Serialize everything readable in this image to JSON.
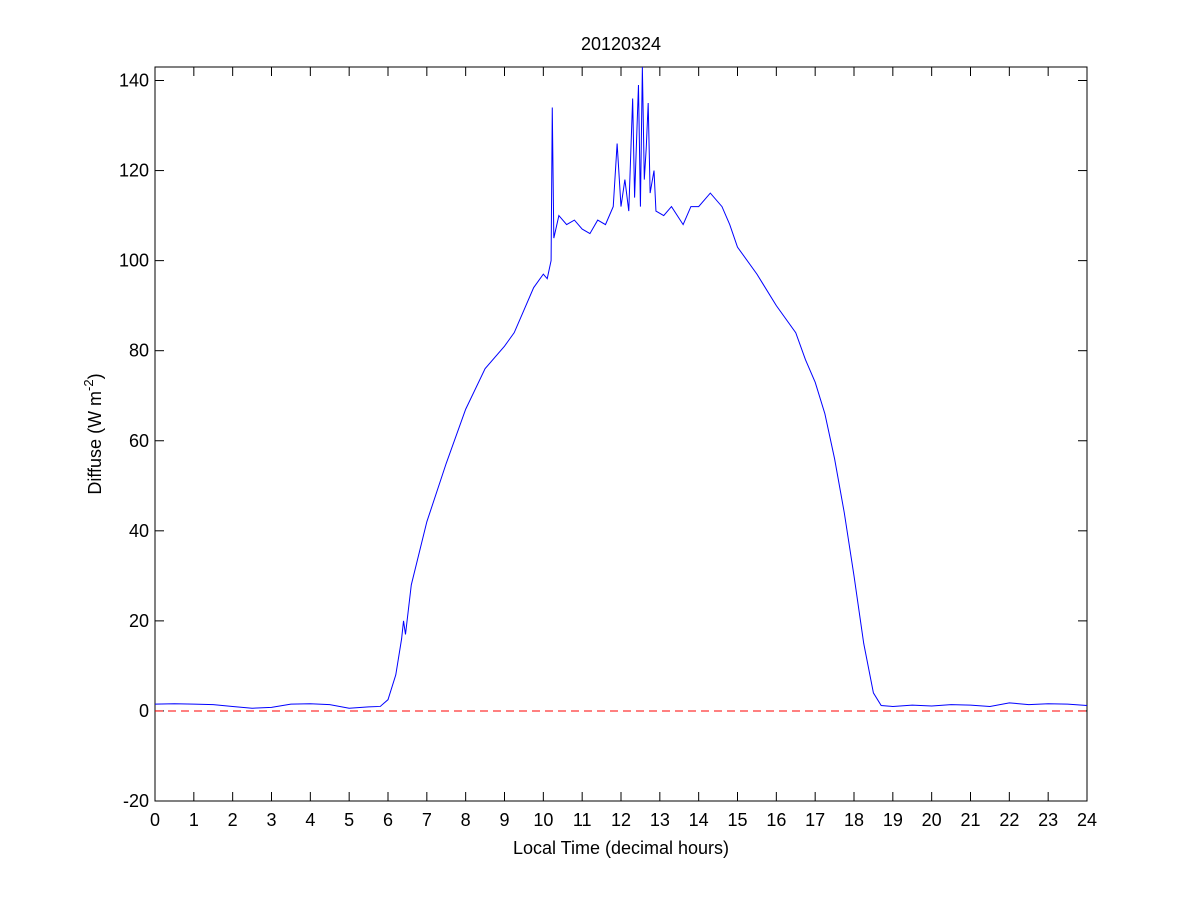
{
  "chart_data": {
    "type": "line",
    "title": "20120324",
    "xlabel": "Local Time (decimal hours)",
    "ylabel": [
      "Diffuse (W m",
      "-2",
      ")"
    ],
    "x": [
      0,
      0.5,
      1,
      1.5,
      2,
      2.5,
      3,
      3.5,
      4,
      4.5,
      5,
      5.5,
      5.8,
      6.0,
      6.2,
      6.35,
      6.4,
      6.45,
      6.6,
      7,
      7.5,
      8,
      8.5,
      9,
      9.25,
      9.5,
      9.75,
      10,
      10.1,
      10.2,
      10.23,
      10.27,
      10.4,
      10.6,
      10.8,
      11,
      11.2,
      11.4,
      11.6,
      11.8,
      11.9,
      12.0,
      12.1,
      12.2,
      12.3,
      12.35,
      12.45,
      12.5,
      12.55,
      12.6,
      12.65,
      12.7,
      12.75,
      12.85,
      12.9,
      13.1,
      13.3,
      13.6,
      13.8,
      14,
      14.3,
      14.6,
      14.8,
      15,
      15.5,
      16,
      16.5,
      16.75,
      17,
      17.25,
      17.5,
      17.75,
      18,
      18.25,
      18.5,
      18.7,
      19,
      19.5,
      20,
      20.5,
      21,
      21.5,
      22,
      22.5,
      23,
      23.5,
      24
    ],
    "series": [
      {
        "name": "Diffuse",
        "color": "#0000ff",
        "values": [
          1.5,
          1.6,
          1.5,
          1.4,
          1.0,
          0.6,
          0.8,
          1.5,
          1.6,
          1.4,
          0.6,
          0.9,
          1.0,
          2.5,
          8,
          16,
          20,
          17,
          28,
          42,
          55,
          67,
          76,
          81,
          84,
          89,
          94,
          97,
          96,
          100,
          134,
          105,
          110,
          108,
          109,
          107,
          106,
          109,
          108,
          112,
          126,
          112,
          118,
          111,
          136,
          114,
          139,
          112,
          143,
          118,
          125,
          135,
          115,
          120,
          111,
          110,
          112,
          108,
          112,
          112,
          115,
          112,
          108,
          103,
          97,
          90,
          84,
          78,
          73,
          66,
          56,
          44,
          30,
          15,
          4,
          1.2,
          1.0,
          1.3,
          1.1,
          1.4,
          1.3,
          1.0,
          1.8,
          1.4,
          1.6,
          1.5,
          1.2
        ]
      }
    ],
    "reference_line": {
      "value": 0,
      "color": "#ff0000",
      "style": "dashed"
    },
    "xlim": [
      0,
      24
    ],
    "xticks": [
      0,
      1,
      2,
      3,
      4,
      5,
      6,
      7,
      8,
      9,
      10,
      11,
      12,
      13,
      14,
      15,
      16,
      17,
      18,
      19,
      20,
      21,
      22,
      23,
      24
    ],
    "ylim": [
      -20,
      143
    ],
    "yticks": [
      -20,
      0,
      20,
      40,
      60,
      80,
      100,
      120,
      140
    ],
    "grid": false
  }
}
